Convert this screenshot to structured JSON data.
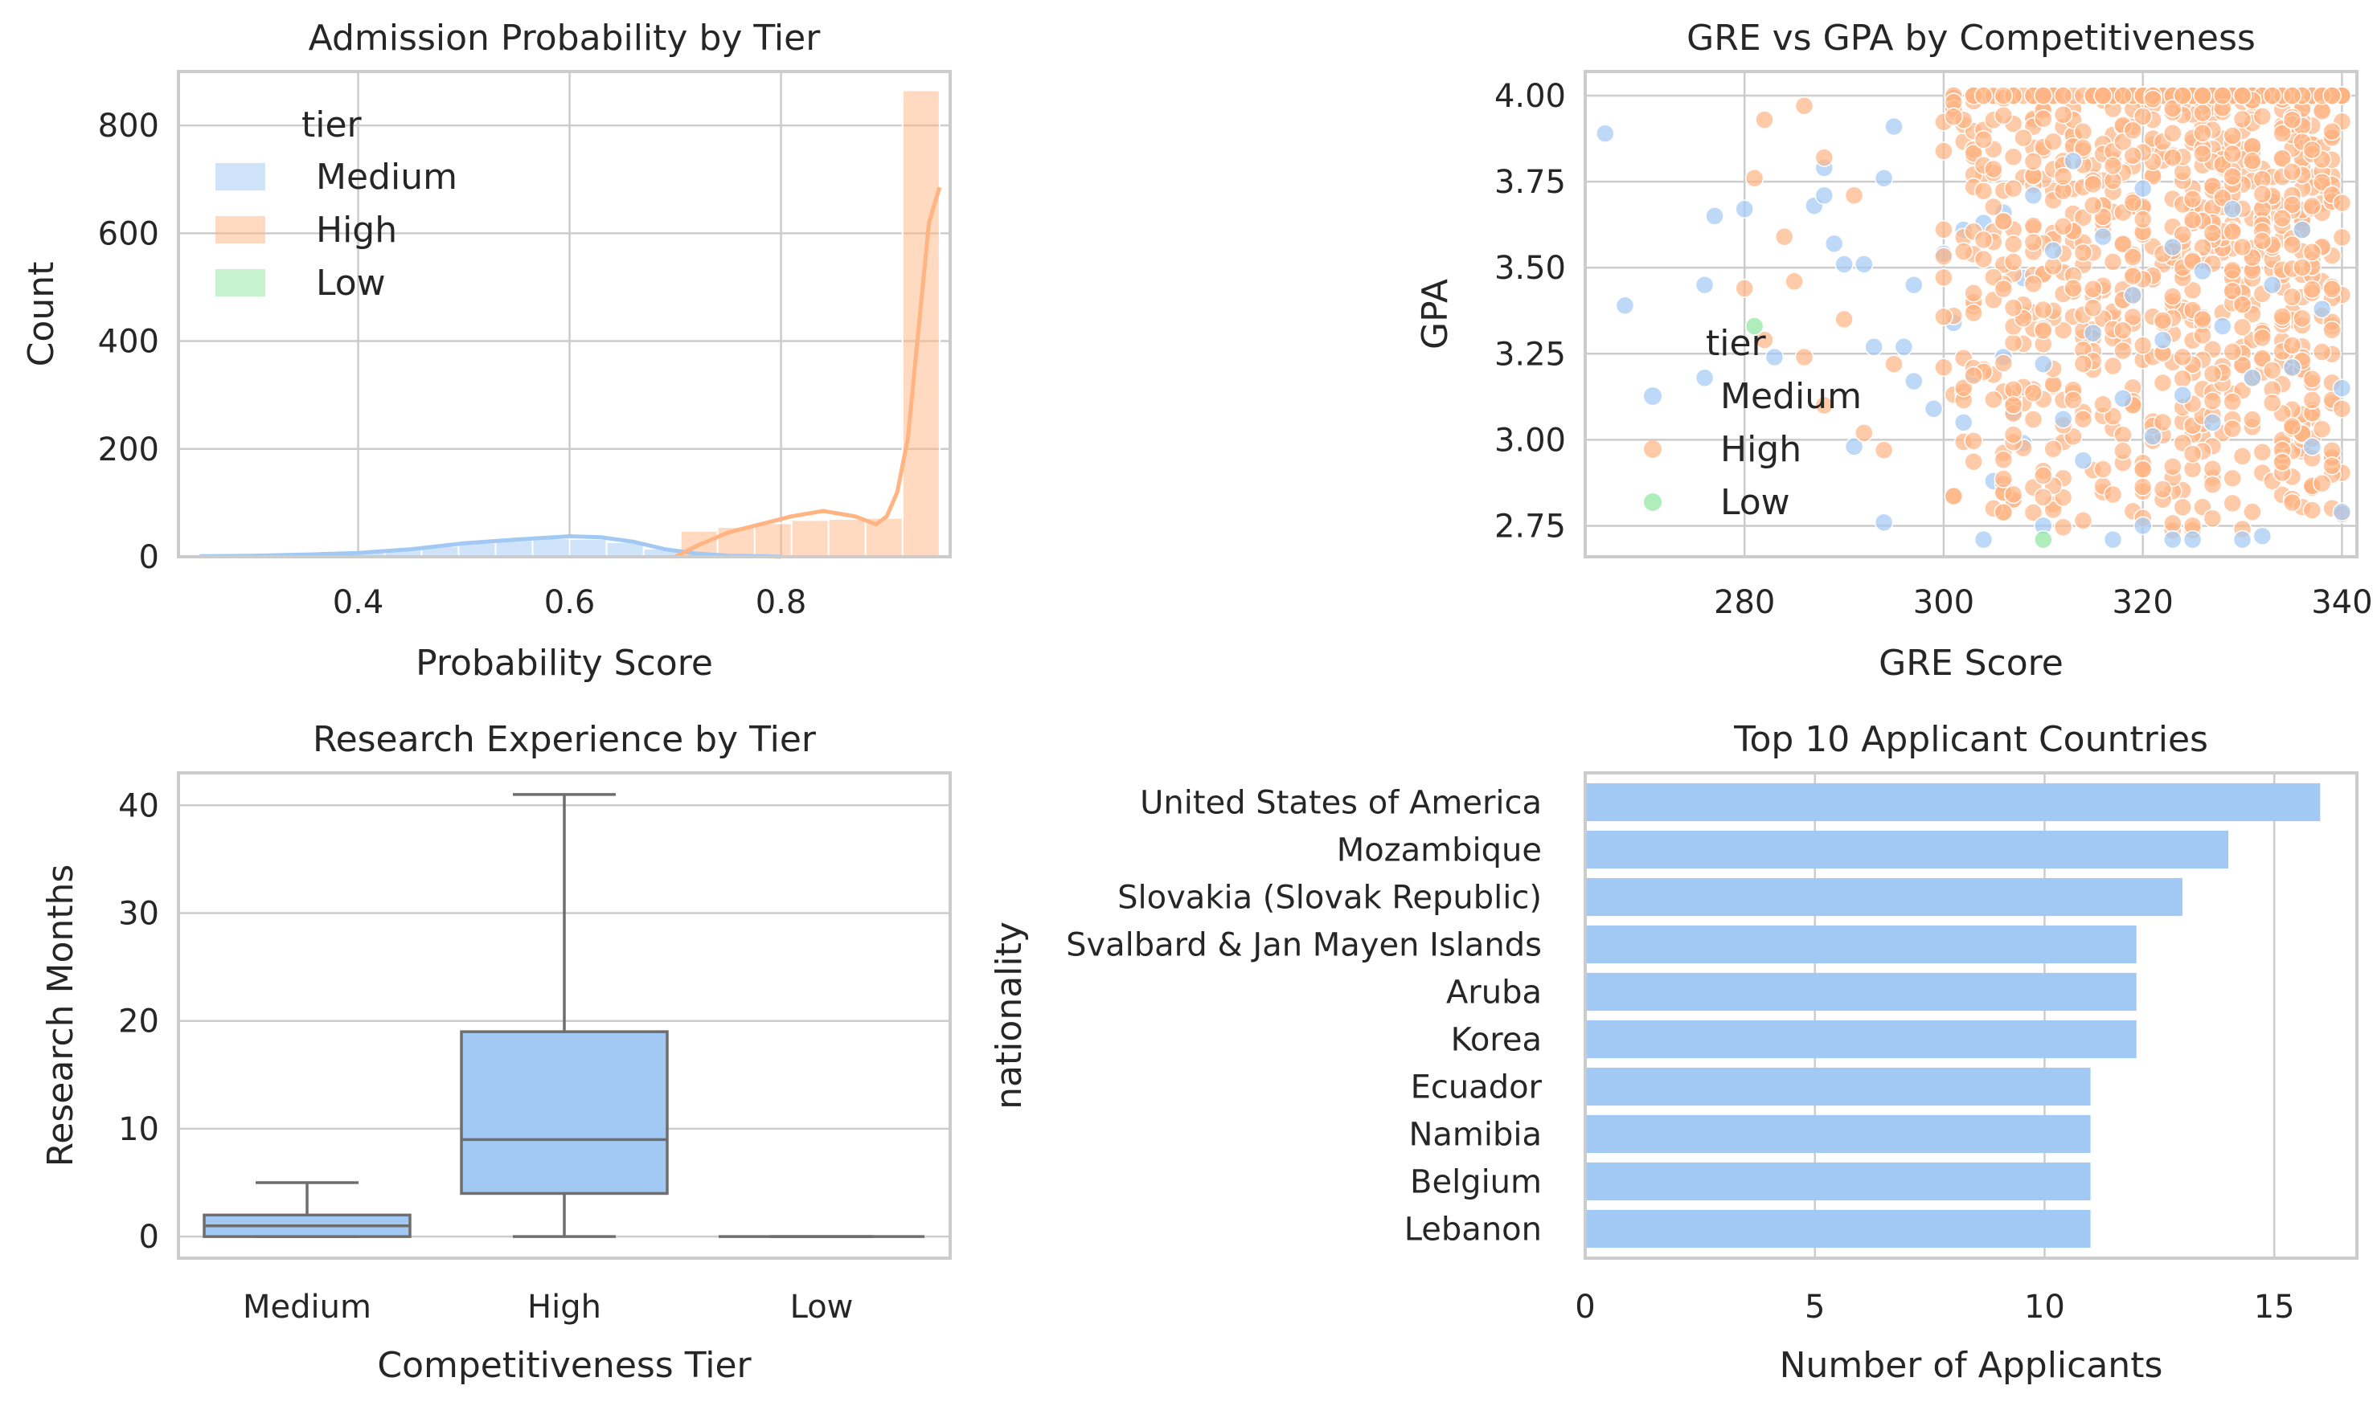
{
  "colors": {
    "Medium": "#a1c9f4",
    "High": "#ffb482",
    "Low": "#8de5a1",
    "bar": "#a1c9f4",
    "box_line": "#6e6e6e"
  },
  "chart_data": [
    {
      "id": "hist",
      "type": "bar",
      "title": "Admission Probability by Tier",
      "xlabel": "Probability Score",
      "ylabel": "Count",
      "xlim": [
        0.23,
        0.96
      ],
      "ylim": [
        0,
        900
      ],
      "xticks": [
        0.4,
        0.6,
        0.8
      ],
      "yticks": [
        0,
        200,
        400,
        600,
        800
      ],
      "grid": true,
      "legend": {
        "title": "tier",
        "placement": "upper-left",
        "entries": [
          "Medium",
          "High",
          "Low"
        ]
      },
      "bin_width": 0.035,
      "series": [
        {
          "name": "Medium",
          "bins_left": [
            0.25,
            0.285,
            0.32,
            0.355,
            0.39,
            0.425,
            0.46,
            0.495,
            0.53,
            0.565,
            0.6,
            0.635,
            0.67,
            0.705
          ],
          "counts": [
            1,
            2,
            3,
            5,
            8,
            14,
            20,
            26,
            31,
            34,
            33,
            27,
            15,
            4
          ],
          "kde_x": [
            0.25,
            0.3,
            0.35,
            0.4,
            0.45,
            0.5,
            0.55,
            0.6,
            0.63,
            0.66,
            0.69,
            0.72,
            0.75,
            0.78,
            0.8
          ],
          "kde_y": [
            1,
            2,
            4,
            7,
            14,
            25,
            32,
            38,
            36,
            28,
            14,
            6,
            2,
            1,
            0
          ]
        },
        {
          "name": "High",
          "bins_left": [
            0.705,
            0.74,
            0.775,
            0.81,
            0.845,
            0.88,
            0.915
          ],
          "counts": [
            48,
            55,
            62,
            68,
            70,
            72,
            865
          ],
          "kde_x": [
            0.7,
            0.72,
            0.75,
            0.78,
            0.81,
            0.84,
            0.87,
            0.89,
            0.9,
            0.91,
            0.92,
            0.93,
            0.94,
            0.95
          ],
          "kde_y": [
            0,
            20,
            45,
            60,
            75,
            85,
            75,
            60,
            75,
            120,
            220,
            420,
            620,
            685
          ]
        },
        {
          "name": "Low",
          "bins_left": [],
          "counts": []
        }
      ]
    },
    {
      "id": "scatter",
      "type": "scatter",
      "title": "GRE vs GPA by Competitiveness",
      "xlabel": "GRE Score",
      "ylabel": "GPA",
      "xlim": [
        264,
        341.5
      ],
      "ylim": [
        2.66,
        4.07
      ],
      "xticks": [
        280,
        300,
        320,
        340
      ],
      "yticks": [
        "2.75",
        "3.00",
        "3.25",
        "3.50",
        "3.75",
        "4.00"
      ],
      "grid": true,
      "legend": {
        "title": "tier",
        "placement": "center-left",
        "entries": [
          "Medium",
          "High",
          "Low"
        ]
      },
      "series": [
        {
          "name": "Medium",
          "points": [
            [
              266,
              3.89
            ],
            [
              268,
              3.39
            ],
            [
              276,
              3.45
            ],
            [
              276,
              3.18
            ],
            [
              277,
              3.65
            ],
            [
              280,
              3.67
            ],
            [
              283,
              3.24
            ],
            [
              287,
              3.68
            ],
            [
              288,
              3.71
            ],
            [
              288,
              3.79
            ],
            [
              289,
              3.57
            ],
            [
              290,
              3.51
            ],
            [
              291,
              2.98
            ],
            [
              292,
              3.51
            ],
            [
              293,
              3.27
            ],
            [
              294,
              2.76
            ],
            [
              294,
              3.76
            ],
            [
              295,
              3.91
            ],
            [
              296,
              3.27
            ],
            [
              297,
              3.17
            ],
            [
              297,
              3.45
            ],
            [
              299,
              3.09
            ],
            [
              300,
              3.54
            ],
            [
              301,
              3.34
            ],
            [
              302,
              3.05
            ],
            [
              302,
              3.61
            ],
            [
              303,
              3.19
            ],
            [
              304,
              2.71
            ],
            [
              304,
              3.63
            ],
            [
              305,
              2.88
            ],
            [
              306,
              3.24
            ],
            [
              306,
              3.66
            ],
            [
              307,
              3.08
            ],
            [
              308,
              2.99
            ],
            [
              308,
              3.47
            ],
            [
              309,
              3.71
            ],
            [
              310,
              2.75
            ],
            [
              310,
              3.22
            ],
            [
              311,
              3.55
            ],
            [
              312,
              3.06
            ],
            [
              313,
              3.81
            ],
            [
              314,
              2.94
            ],
            [
              315,
              3.31
            ],
            [
              316,
              3.59
            ],
            [
              317,
              2.71
            ],
            [
              318,
              3.12
            ],
            [
              319,
              3.42
            ],
            [
              320,
              2.75
            ],
            [
              320,
              3.73
            ],
            [
              321,
              3.01
            ],
            [
              322,
              3.29
            ],
            [
              323,
              2.71
            ],
            [
              323,
              3.56
            ],
            [
              324,
              3.13
            ],
            [
              325,
              2.71
            ],
            [
              326,
              3.49
            ],
            [
              327,
              3.05
            ],
            [
              328,
              3.33
            ],
            [
              329,
              3.67
            ],
            [
              330,
              2.71
            ],
            [
              331,
              3.18
            ],
            [
              332,
              2.72
            ],
            [
              333,
              3.45
            ],
            [
              335,
              3.21
            ],
            [
              336,
              3.61
            ],
            [
              337,
              2.98
            ],
            [
              338,
              3.38
            ],
            [
              340,
              3.15
            ],
            [
              340,
              2.79
            ]
          ]
        },
        {
          "name": "High",
          "count": 950,
          "seed": 7,
          "gre_range": [
            280,
            340
          ],
          "gpa_range": [
            2.7,
            4.0
          ],
          "outliers": [
            [
              280,
              3.44
            ],
            [
              281,
              3.76
            ],
            [
              282,
              3.93
            ],
            [
              282,
              3.29
            ],
            [
              284,
              3.59
            ],
            [
              285,
              3.46
            ],
            [
              286,
              3.24
            ],
            [
              286,
              3.97
            ],
            [
              288,
              3.82
            ],
            [
              288,
              3.1
            ],
            [
              290,
              3.35
            ],
            [
              291,
              3.71
            ],
            [
              292,
              3.02
            ],
            [
              294,
              2.97
            ],
            [
              295,
              3.22
            ]
          ]
        },
        {
          "name": "Low",
          "points": [
            [
              281,
              3.33
            ],
            [
              310,
              2.71
            ]
          ]
        }
      ]
    },
    {
      "id": "box",
      "type": "box",
      "title": "Research Experience by Tier",
      "xlabel": "Competitiveness Tier",
      "ylabel": "Research Months",
      "categories": [
        "Medium",
        "High",
        "Low"
      ],
      "ylim": [
        -2,
        43
      ],
      "yticks": [
        0,
        10,
        20,
        30,
        40
      ],
      "grid": true,
      "boxes": [
        {
          "name": "Medium",
          "min": 0,
          "q1": 0,
          "median": 1,
          "q3": 2,
          "max": 5
        },
        {
          "name": "High",
          "min": 0,
          "q1": 4,
          "median": 9,
          "q3": 19,
          "max": 41
        },
        {
          "name": "Low",
          "min": 0,
          "q1": 0,
          "median": 0,
          "q3": 0,
          "max": 0
        }
      ]
    },
    {
      "id": "hbar",
      "type": "bar",
      "orientation": "horizontal",
      "title": "Top 10 Applicant Countries",
      "xlabel": "Number of Applicants",
      "ylabel": "nationality",
      "xlim": [
        0,
        16.8
      ],
      "xticks": [
        0,
        5,
        10,
        15
      ],
      "grid": true,
      "categories": [
        "United States of America",
        "Mozambique",
        "Slovakia (Slovak Republic)",
        "Svalbard & Jan Mayen Islands",
        "Aruba",
        "Korea",
        "Ecuador",
        "Namibia",
        "Belgium",
        "Lebanon"
      ],
      "values": [
        16,
        14,
        13,
        12,
        12,
        12,
        11,
        11,
        11,
        11
      ]
    }
  ]
}
